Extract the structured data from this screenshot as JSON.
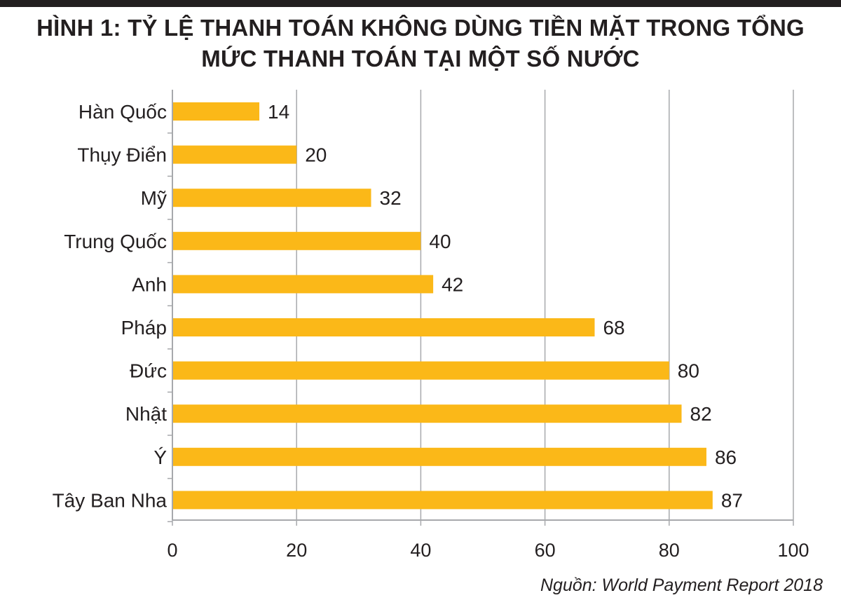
{
  "title_lines": [
    "HÌNH 1: TỶ LỆ THANH TOÁN KHÔNG DÙNG TIỀN MẶT TRONG TỔNG",
    "MỨC THANH TOÁN TẠI MỘT SỐ NƯỚC"
  ],
  "source": "Nguồn: World Payment Report 2018",
  "colors": {
    "bar": "#fbb818",
    "grid": "#a7a9ac",
    "axis": "#a7a9ac",
    "text": "#231f20",
    "top_rule": "#231f20"
  },
  "chart_data": {
    "type": "bar",
    "orientation": "horizontal",
    "title": "HÌNH 1: TỶ LỆ THANH TOÁN KHÔNG DÙNG TIỀN MẶT TRONG TỔNG MỨC THANH TOÁN TẠI MỘT SỐ NƯỚC",
    "categories": [
      "Hàn Quốc",
      "Thụy Điển",
      "Mỹ",
      "Trung Quốc",
      "Anh",
      "Pháp",
      "Đức",
      "Nhật",
      "Ý",
      "Tây Ban Nha"
    ],
    "values": [
      14,
      20,
      32,
      40,
      42,
      68,
      80,
      82,
      86,
      87
    ],
    "data_labels": [
      "14",
      "20",
      "32",
      "40",
      "42",
      "68",
      "80",
      "82",
      "86",
      "87"
    ],
    "xlim": [
      0,
      100
    ],
    "xticks": [
      0,
      20,
      40,
      60,
      80,
      100
    ],
    "xtick_labels": [
      "0",
      "20",
      "40",
      "60",
      "80",
      "100"
    ],
    "xlabel": "",
    "ylabel": "",
    "grid": true,
    "legend": "none"
  }
}
